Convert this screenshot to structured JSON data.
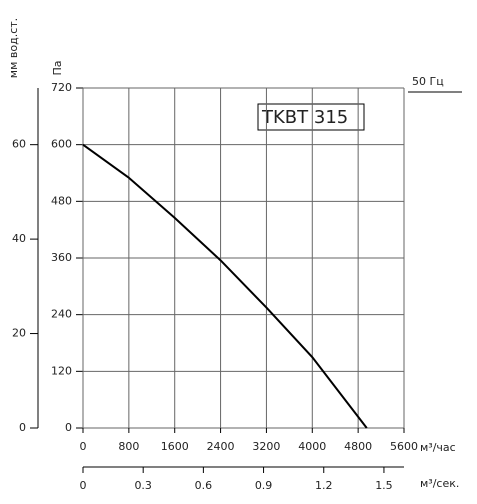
{
  "chart_data": {
    "type": "line",
    "title": "TKBT 315",
    "annotation": "50 Гц",
    "y_label": "Па",
    "y2_label": "мм вод.ст.",
    "x_label": "м³/час",
    "x2_label": "м³/сек.",
    "x": [
      0,
      800,
      1600,
      2400,
      3200,
      4000,
      4950
    ],
    "series": [
      {
        "color": "#000000",
        "values": [
          600,
          530,
          445,
          355,
          255,
          150,
          0
        ]
      }
    ],
    "xlim": [
      0,
      5600
    ],
    "xticks": [
      0,
      800,
      1600,
      2400,
      3200,
      4000,
      4800,
      5600
    ],
    "ylim": [
      0,
      720
    ],
    "yticks": [
      0,
      120,
      240,
      360,
      480,
      600,
      720
    ],
    "y2lim": [
      0,
      72
    ],
    "y2ticks": [
      0,
      20,
      40,
      60
    ],
    "x2lim": [
      0,
      1.6
    ],
    "x2ticks": [
      0,
      0.3,
      0.6,
      0.9,
      1.2,
      1.5
    ],
    "grid": true
  }
}
